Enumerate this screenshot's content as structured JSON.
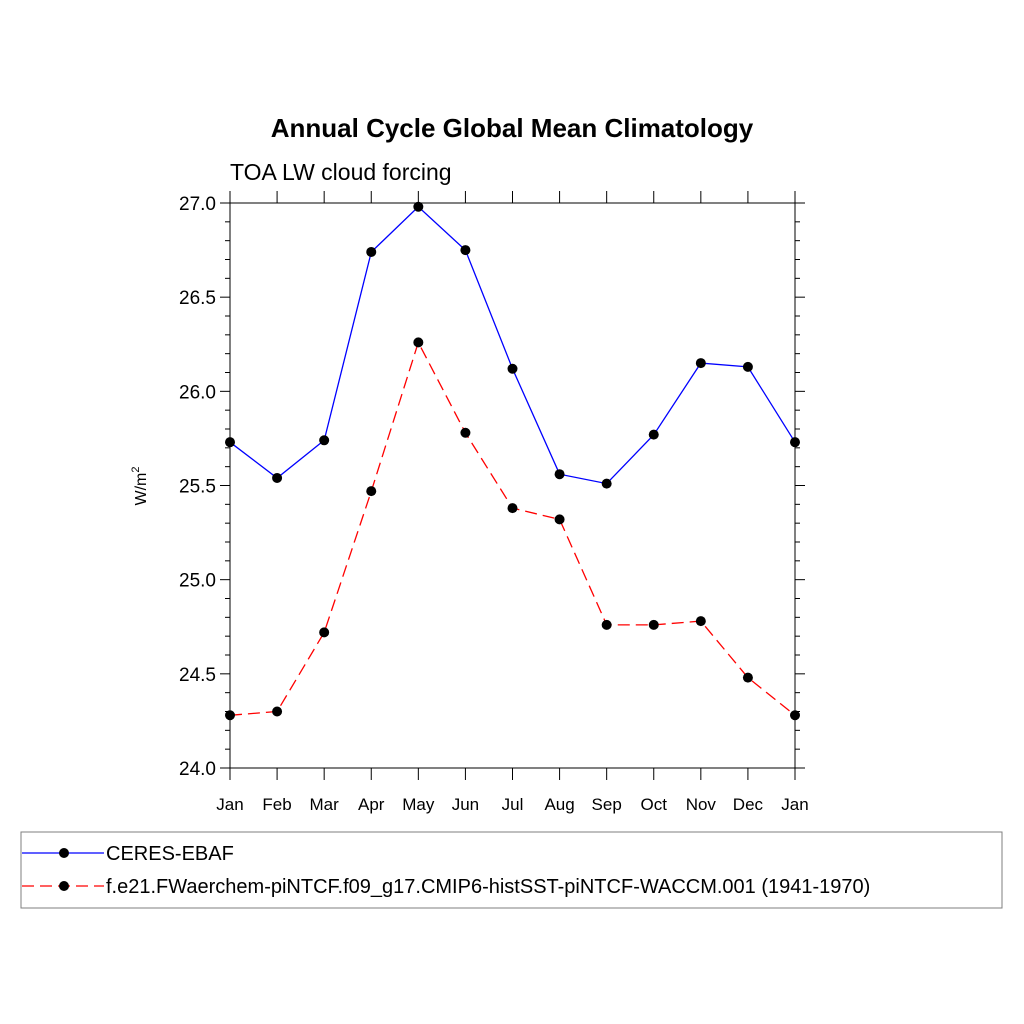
{
  "chart_data": {
    "type": "line",
    "title": "Annual Cycle Global Mean Climatology",
    "subtitle": "TOA LW cloud forcing",
    "ylabel_base": "W/m",
    "ylabel_sup": "2",
    "xlabel": "",
    "categories": [
      "Jan",
      "Feb",
      "Mar",
      "Apr",
      "May",
      "Jun",
      "Jul",
      "Aug",
      "Sep",
      "Oct",
      "Nov",
      "Dec",
      "Jan"
    ],
    "ylim": [
      24.0,
      27.0
    ],
    "yticks": [
      "24.0",
      "24.5",
      "25.0",
      "25.5",
      "26.0",
      "26.5",
      "27.0"
    ],
    "grid": false,
    "legend_position": "bottom",
    "series": [
      {
        "name": "CERES-EBAF",
        "color": "#0000ff",
        "dashed": false,
        "marker": "circle",
        "values": [
          25.73,
          25.54,
          25.74,
          26.74,
          26.98,
          26.75,
          26.12,
          25.56,
          25.51,
          25.77,
          26.15,
          26.13,
          25.73
        ]
      },
      {
        "name": "f.e21.FWaerchem-piNTCF.f09_g17.CMIP6-histSST-piNTCF-WACCM.001 (1941-1970)",
        "color": "#ff0000",
        "dashed": true,
        "marker": "circle",
        "values": [
          24.28,
          24.3,
          24.72,
          25.47,
          26.26,
          25.78,
          25.38,
          25.32,
          24.76,
          24.76,
          24.78,
          24.48,
          24.28
        ]
      }
    ]
  }
}
